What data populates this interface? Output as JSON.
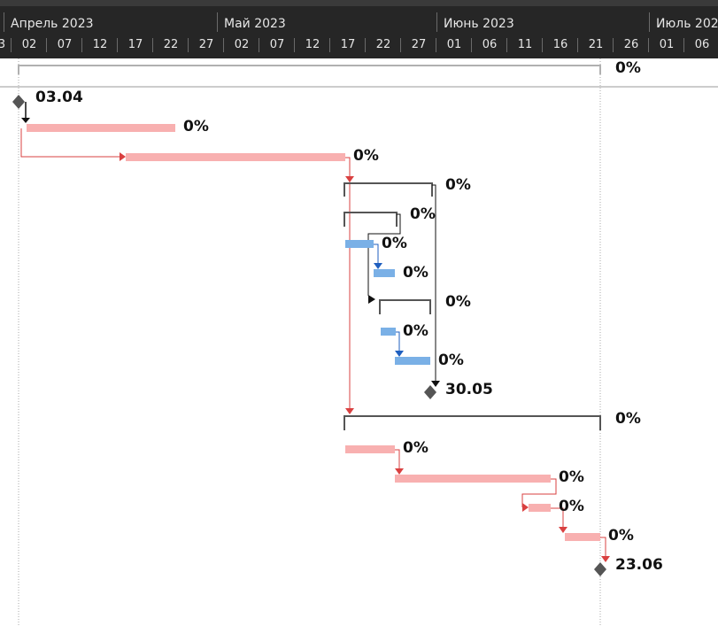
{
  "timescale": {
    "months": [
      "Апрель 2023",
      "Май 2023",
      "Июнь 2023",
      "Июль 2023"
    ],
    "days_left_edge": "3",
    "days": [
      "02",
      "07",
      "12",
      "17",
      "22",
      "27",
      "02",
      "07",
      "12",
      "17",
      "22",
      "27",
      "01",
      "06",
      "11",
      "16",
      "21",
      "26",
      "01",
      "06"
    ]
  },
  "tasks": [
    {
      "kind": "project_summary",
      "label": "0%"
    },
    {
      "kind": "milestone",
      "label": "03.04"
    },
    {
      "kind": "task",
      "label": "0%"
    },
    {
      "kind": "task",
      "label": "0%"
    },
    {
      "kind": "summary",
      "label": "0%"
    },
    {
      "kind": "summary",
      "label": "0%"
    },
    {
      "kind": "task",
      "label": "0%",
      "color": "#7ab0e6"
    },
    {
      "kind": "task",
      "label": "0%",
      "color": "#7ab0e6"
    },
    {
      "kind": "summary",
      "label": "0%"
    },
    {
      "kind": "task",
      "label": "0%",
      "color": "#7ab0e6"
    },
    {
      "kind": "task",
      "label": "0%",
      "color": "#7ab0e6"
    },
    {
      "kind": "milestone",
      "label": "30.05"
    },
    {
      "kind": "summary",
      "label": "0%"
    },
    {
      "kind": "task",
      "label": "0%"
    },
    {
      "kind": "task",
      "label": "0%"
    },
    {
      "kind": "task",
      "label": "0%"
    },
    {
      "kind": "task",
      "label": "0%"
    },
    {
      "kind": "milestone",
      "label": "23.06"
    }
  ],
  "colors": {
    "header_bg": "#262626",
    "task_bar": "#f8b0b0",
    "subtask_bar": "#7ab0e6",
    "summary": "#555555",
    "milestone": "#555555",
    "link_red": "#d94040",
    "link_blue": "#1f5fbf",
    "link_black": "#111111"
  }
}
